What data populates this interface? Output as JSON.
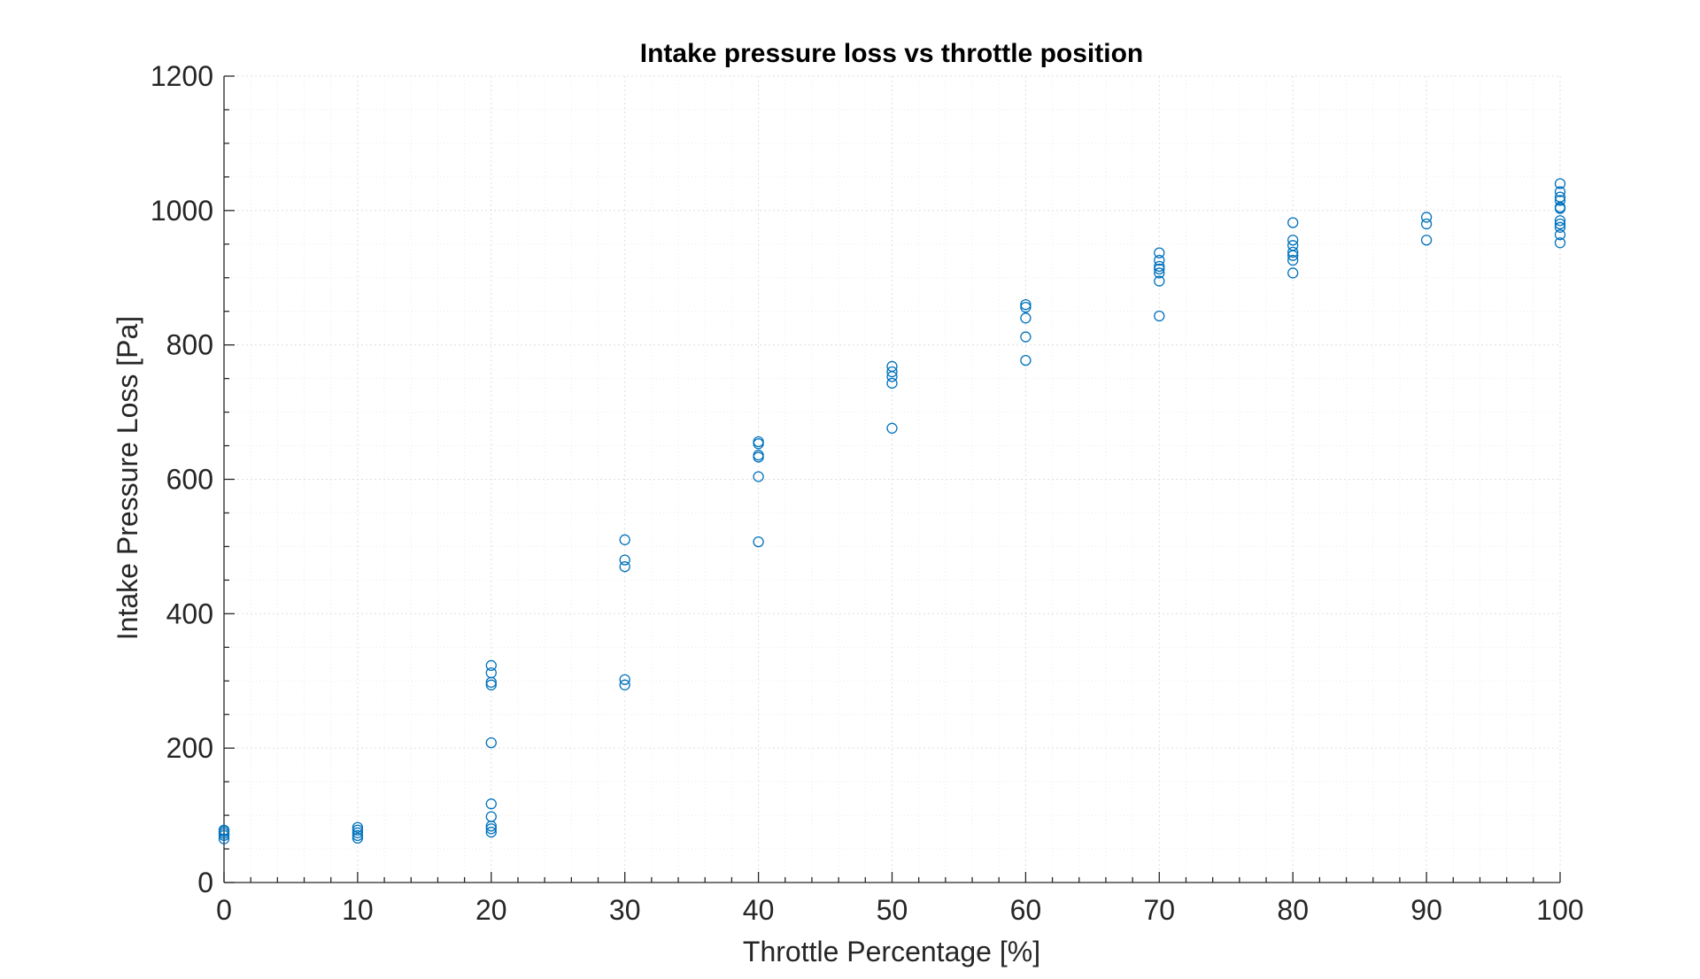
{
  "chart_data": {
    "type": "scatter",
    "title": "Intake pressure loss vs throttle position",
    "xlabel": "Throttle Percentage [%]",
    "ylabel": "Intake Pressure Loss [Pa]",
    "xlim": [
      0,
      100
    ],
    "ylim": [
      0,
      1200
    ],
    "xticks": [
      0,
      10,
      20,
      30,
      40,
      50,
      60,
      70,
      80,
      90,
      100
    ],
    "yticks": [
      0,
      200,
      400,
      600,
      800,
      1000,
      1200
    ],
    "x_minor_step": 2,
    "y_minor_step": 50,
    "grid": true,
    "minor_grid": true,
    "marker": "circle-open",
    "color": "#0072BD",
    "series": [
      {
        "x": [
          0,
          0,
          0,
          0,
          0,
          10,
          10,
          10,
          10,
          10,
          20,
          20,
          20,
          20,
          20,
          20,
          20,
          20,
          20,
          20,
          30,
          30,
          30,
          30,
          30,
          40,
          40,
          40,
          40,
          40,
          40,
          50,
          50,
          50,
          50,
          50,
          60,
          60,
          60,
          60,
          60,
          70,
          70,
          70,
          70,
          70,
          70,
          70,
          80,
          80,
          80,
          80,
          80,
          80,
          80,
          90,
          90,
          90,
          100,
          100,
          100,
          100,
          100,
          100,
          100,
          100,
          100,
          100,
          100
        ],
        "y": [
          65,
          70,
          73,
          76,
          78,
          66,
          70,
          74,
          78,
          82,
          75,
          80,
          84,
          98,
          117,
          208,
          294,
          298,
          312,
          323,
          294,
          302,
          470,
          480,
          510,
          507,
          604,
          633,
          636,
          653,
          656,
          676,
          743,
          753,
          760,
          768,
          777,
          812,
          840,
          856,
          860,
          843,
          895,
          907,
          913,
          917,
          926,
          937,
          907,
          926,
          933,
          938,
          948,
          956,
          982,
          956,
          980,
          990,
          952,
          964,
          975,
          980,
          985,
          1003,
          1005,
          1015,
          1020,
          1028,
          1040
        ]
      }
    ]
  }
}
